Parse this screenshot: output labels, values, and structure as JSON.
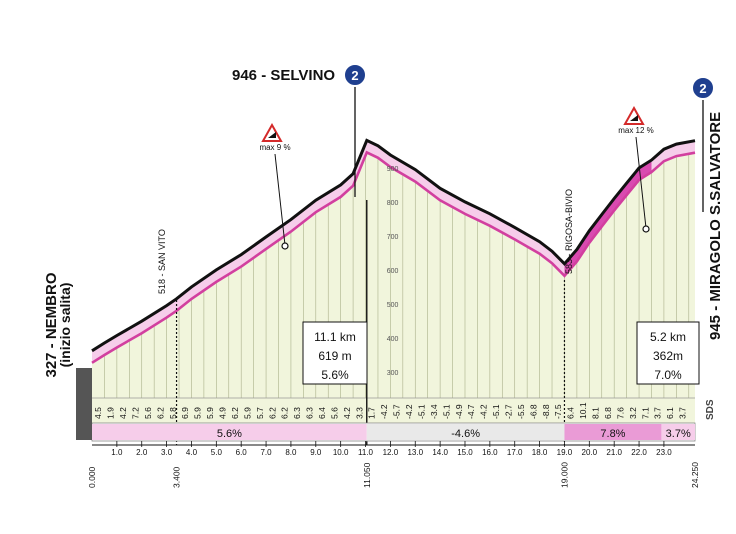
{
  "colors": {
    "fill": "#f1f5dc",
    "grid": "#aab08a",
    "pink": "#ea9bd6",
    "pinkLight": "#f6cdea",
    "pinkDark": "#d94ab0",
    "magenta": "#d23f9f",
    "line": "#111111",
    "badge": "#1f3f8f"
  },
  "icons": {
    "gpm": "gpm-category-2-icon",
    "steep": "steep-gradient-warning-icon",
    "sds": "sds-logo-icon"
  },
  "chart_data": {
    "type": "area",
    "title": "",
    "xlabel": "",
    "ylabel": "",
    "xlim": [
      0,
      24.25
    ],
    "ylim": [
      150,
      1000
    ],
    "profile_x": [
      0,
      0.5,
      1,
      2,
      3,
      3.4,
      4,
      5,
      6,
      7,
      8,
      9,
      10,
      10.5,
      11.05,
      11.5,
      12,
      13,
      14,
      15,
      16,
      17,
      18,
      18.5,
      19,
      19.5,
      20,
      20.5,
      21,
      21.5,
      22,
      22.5,
      23,
      23.5,
      24.25
    ],
    "profile_y": [
      327,
      350,
      372,
      414,
      460,
      480,
      515,
      565,
      610,
      662,
      713,
      770,
      815,
      848,
      946,
      930,
      903,
      860,
      805,
      765,
      730,
      690,
      648,
      620,
      583,
      625,
      680,
      728,
      775,
      820,
      865,
      888,
      920,
      935,
      945
    ],
    "gradient_labels": {
      "x": [
        0.5,
        1,
        1.5,
        2,
        2.5,
        3,
        3.5,
        4,
        4.5,
        5,
        5.5,
        6,
        6.5,
        7,
        7.5,
        8,
        8.5,
        9,
        9.5,
        10,
        10.5,
        11,
        11.5,
        12,
        12.5,
        13,
        13.5,
        14,
        14.5,
        15,
        15.5,
        16,
        16.5,
        17,
        17.5,
        18,
        18.5,
        19,
        19.5,
        20,
        20.5,
        21,
        21.5,
        22,
        22.5,
        23,
        23.5,
        24
      ],
      "values": [
        "4.5",
        "1.9",
        "4.2",
        "7.2",
        "5.6",
        "6.2",
        "5.8",
        "6.9",
        "5.9",
        "5.9",
        "4.9",
        "6.2",
        "5.9",
        "5.7",
        "6.2",
        "6.2",
        "6.3",
        "6.3",
        "6.4",
        "5.6",
        "4.2",
        "3.3",
        "1.7",
        "-4.2",
        "-5.7",
        "-4.2",
        "-5.1",
        "-3.4",
        "-5.1",
        "-4.9",
        "-4.7",
        "-4.2",
        "-5.1",
        "-2.7",
        "-5.5",
        "-6.8",
        "-8.8",
        "-7.5",
        "6.4",
        "10.1",
        "8.1",
        "6.8",
        "7.6",
        "3.2",
        "7.1",
        "3.7",
        "6.1",
        "3.7"
      ]
    },
    "altitude_ticks": [
      "300",
      "400",
      "500",
      "600",
      "700",
      "800",
      "900"
    ],
    "km_ticks": [
      "1.0",
      "2.0",
      "3.0",
      "4.0",
      "5.0",
      "6.0",
      "7.0",
      "8.0",
      "9.0",
      "10.0",
      "11.0",
      "12.0",
      "13.0",
      "14.0",
      "15.0",
      "16.0",
      "17.0",
      "18.0",
      "19.0",
      "20.0",
      "21.0",
      "22.0",
      "23.0"
    ],
    "km_markers": [
      {
        "x": 0,
        "label": "0.000"
      },
      {
        "x": 3.4,
        "label": "3.400"
      },
      {
        "x": 11.05,
        "label": "11.050"
      },
      {
        "x": 19.0,
        "label": "19.000"
      },
      {
        "x": 24.25,
        "label": "24.250"
      }
    ],
    "segments": [
      {
        "from": 0,
        "to": 11.05,
        "label": "5.6%"
      },
      {
        "from": 11.05,
        "to": 19.0,
        "label": "-4.6%"
      },
      {
        "from": 19.0,
        "to": 22.9,
        "label": "7.8%"
      },
      {
        "from": 22.9,
        "to": 24.25,
        "label": "3.7%"
      }
    ],
    "points": {
      "start_name": "327 - NEMBRO",
      "start_sub": "(inizio salita)",
      "summit1": "946 - SELVINO",
      "summit2": "945 - MIRAGOLO S.SALVATORE",
      "san_vito": "518 - SAN VITO",
      "rigosa": "583 - RIGOSA-BIVIO",
      "max1": "max 9 %",
      "max2": "max 12 %",
      "badge": "2"
    },
    "boxes": [
      {
        "km": "11.1 km",
        "m": "619 m",
        "pct": "5.6%"
      },
      {
        "km": "5.2 km",
        "m": "362m",
        "pct": "7.0%"
      }
    ],
    "sds": "SDS"
  }
}
